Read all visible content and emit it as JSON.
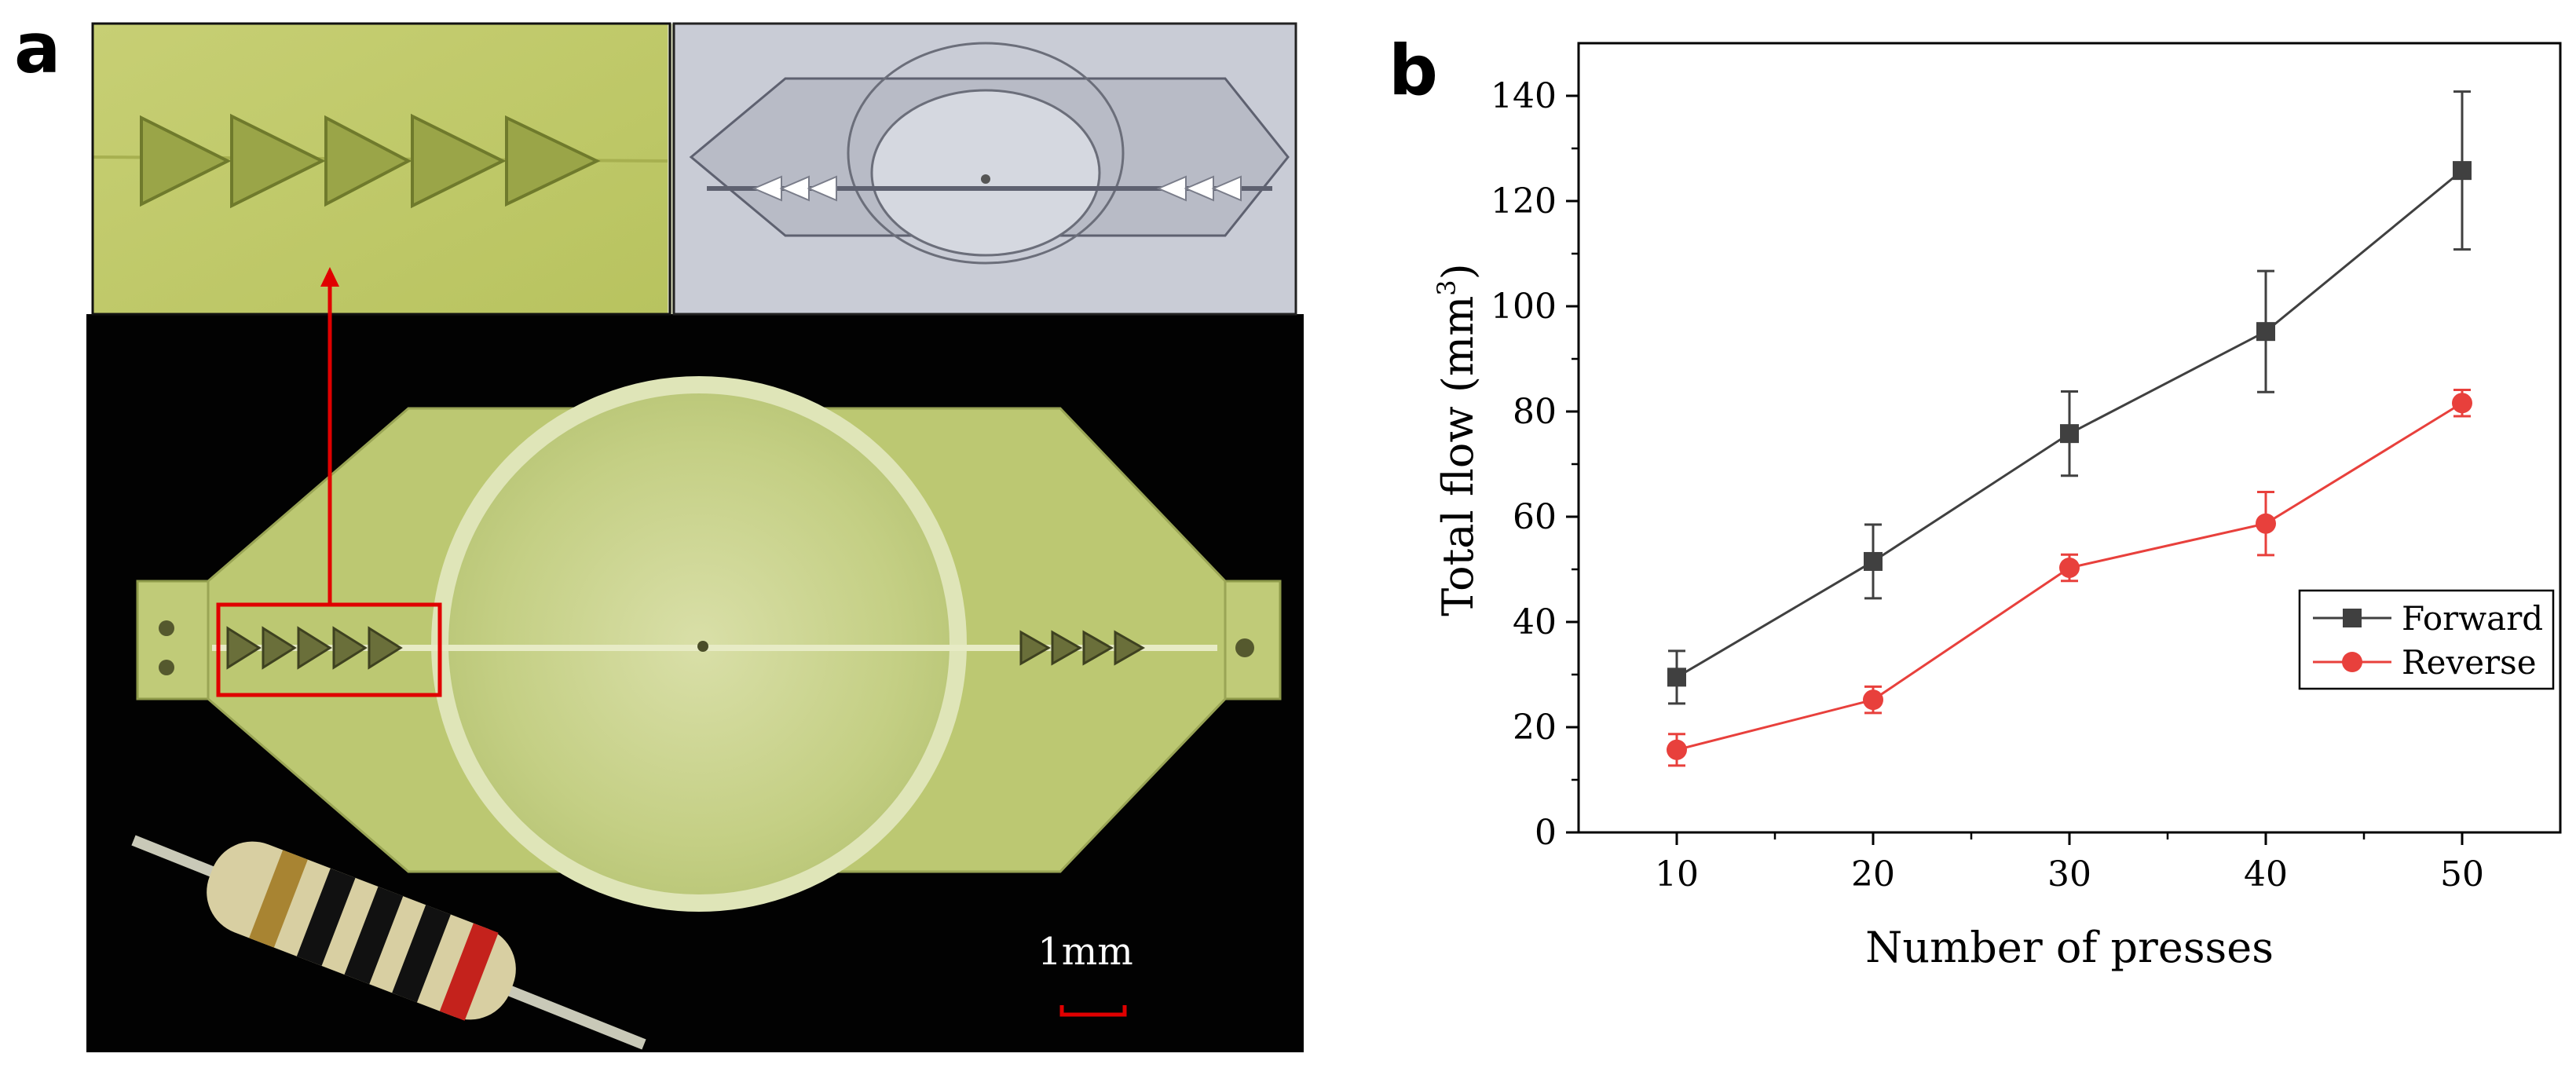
{
  "panels": {
    "a_label": "a",
    "b_label": "b"
  },
  "panel_a": {
    "scale_bar_label": "1mm",
    "colors": {
      "device_resin": "#c8d48a",
      "background": "#000000",
      "highlight_box": "#e00000",
      "cad_background": "#c9ccd6"
    }
  },
  "chart_data": {
    "type": "line",
    "title": "",
    "xlabel": "Number of presses",
    "ylabel_main": "Total flow (mm",
    "ylabel_sup": "3",
    "ylabel_end": ")",
    "x": [
      10,
      20,
      30,
      40,
      50
    ],
    "xticks": [
      10,
      20,
      30,
      40,
      50
    ],
    "xlim": [
      5,
      55
    ],
    "yticks": [
      0,
      20,
      40,
      60,
      80,
      100,
      120,
      140
    ],
    "ylim": [
      0,
      150
    ],
    "grid": false,
    "legend_position": "right",
    "series": [
      {
        "name": "Forward",
        "values": [
          29.5,
          51.5,
          75.8,
          95.2,
          125.8
        ],
        "errors": [
          5,
          7,
          8,
          11.5,
          15
        ],
        "color": "#404040",
        "marker": "square"
      },
      {
        "name": "Reverse",
        "values": [
          15.7,
          25.2,
          50.3,
          58.7,
          81.6
        ],
        "errors": [
          3,
          2.5,
          2.5,
          6,
          2.5
        ],
        "color": "#e8403c",
        "marker": "circle"
      }
    ]
  }
}
